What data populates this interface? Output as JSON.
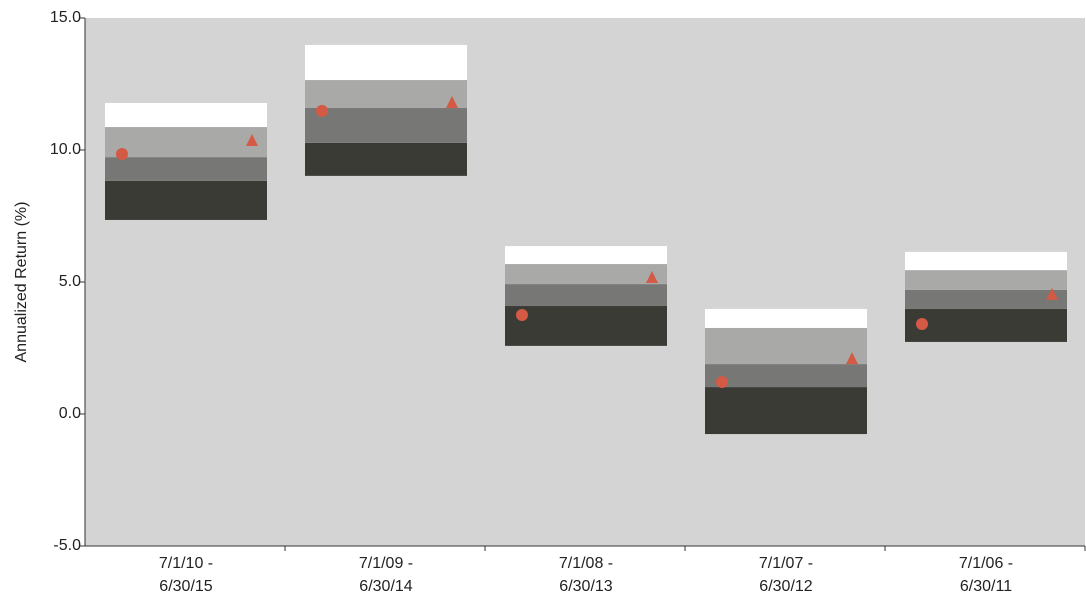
{
  "chart_data": {
    "type": "floating_bar",
    "y_label": "Annualized Return (%)",
    "categories": [
      [
        "7/1/10 -",
        "6/30/15"
      ],
      [
        "7/1/09 -",
        "6/30/14"
      ],
      [
        "7/1/08 -",
        "6/30/13"
      ],
      [
        "7/1/07 -",
        "6/30/12"
      ],
      [
        "7/1/06 -",
        "6/30/11"
      ]
    ],
    "ranges": [
      [
        7.35,
        8.83,
        9.73,
        10.87,
        11.78
      ],
      [
        9.02,
        10.27,
        11.59,
        12.65,
        13.98
      ],
      [
        2.58,
        4.09,
        4.92,
        5.68,
        6.36
      ],
      [
        -0.76,
        1.02,
        1.89,
        3.26,
        3.98
      ],
      [
        2.73,
        3.98,
        4.7,
        5.45,
        6.14
      ]
    ],
    "band_colors": [
      "#3b3b36",
      "#777775",
      "#a9a9a7",
      "#ffffff"
    ],
    "series": [
      {
        "marker": "circle",
        "color": "#d45a45",
        "values": [
          9.85,
          11.48,
          3.75,
          1.21,
          3.41
        ]
      },
      {
        "marker": "triangle",
        "color": "#d45a45",
        "values": [
          10.34,
          11.78,
          5.15,
          2.08,
          4.51
        ]
      }
    ],
    "ylim": [
      -5,
      15
    ],
    "yticks": [
      {
        "value": -5,
        "label": "-5.0"
      },
      {
        "value": 0,
        "label": "0.0"
      },
      {
        "value": 5,
        "label": "5.0"
      },
      {
        "value": 10,
        "label": "10.0"
      },
      {
        "value": 15,
        "label": "15.0"
      }
    ],
    "background": "#d4d4d4"
  }
}
